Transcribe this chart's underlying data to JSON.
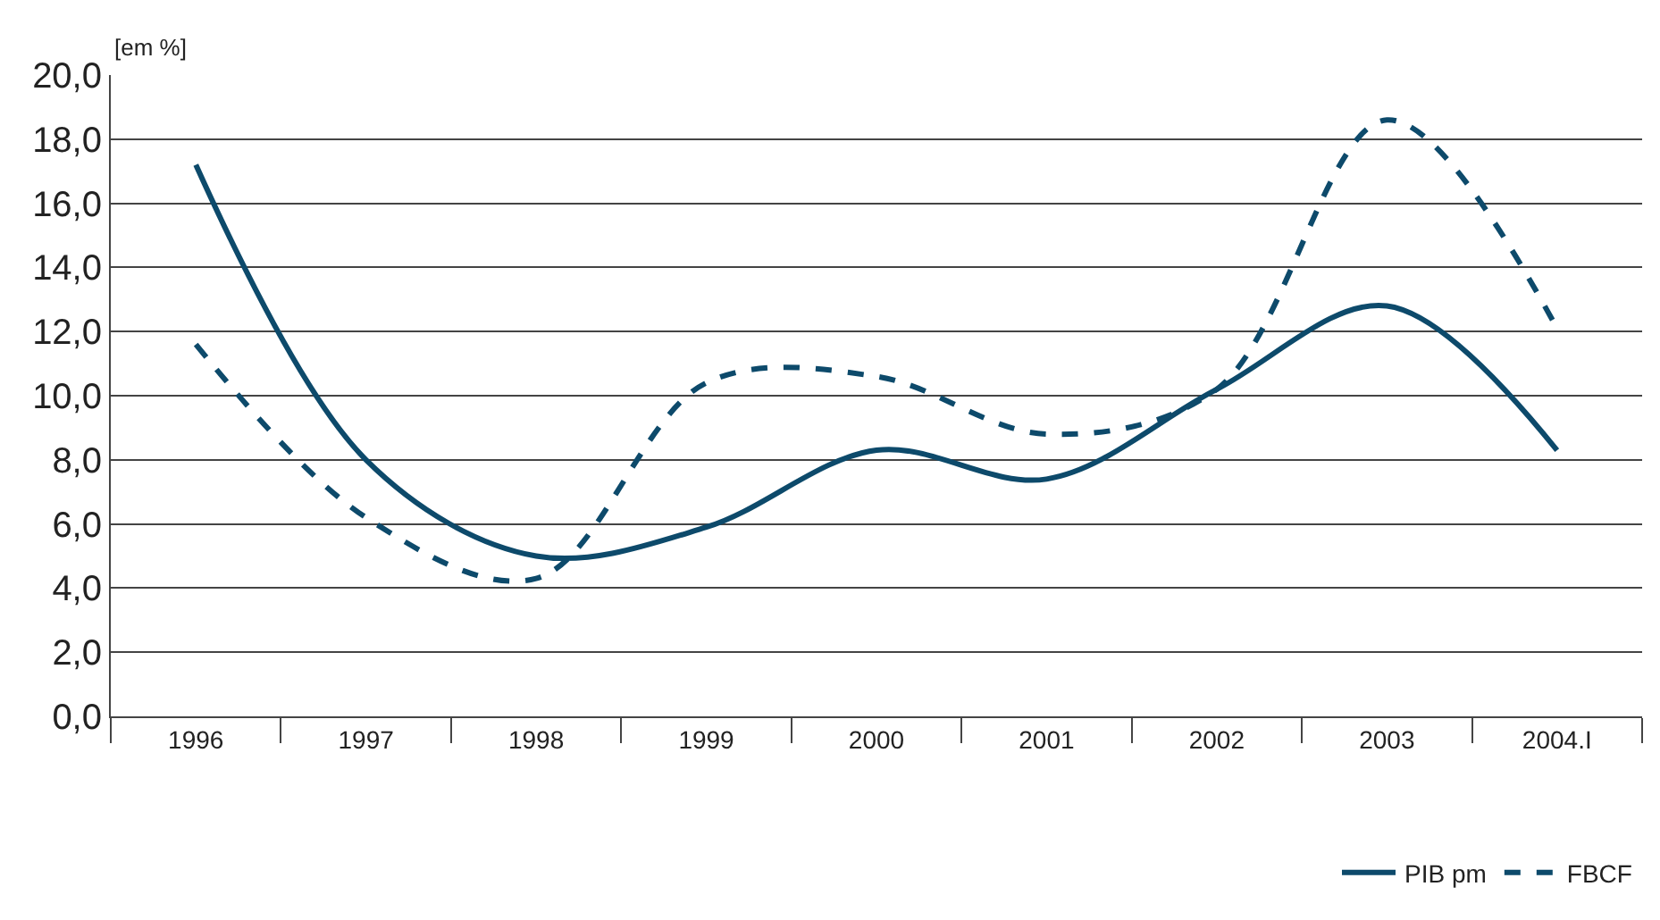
{
  "chart_data": {
    "type": "line",
    "ylabel": "[em %]",
    "categories": [
      "1996",
      "1997",
      "1998",
      "1999",
      "2000",
      "2001",
      "2002",
      "2003",
      "2004.I"
    ],
    "series": [
      {
        "name": "PIB pm",
        "color": "#0d4a6b",
        "line_style": "solid",
        "values": [
          17.2,
          8.0,
          5.0,
          5.9,
          8.3,
          7.4,
          10.2,
          12.8,
          8.3
        ]
      },
      {
        "name": "FBCF",
        "color": "#0d4a6b",
        "line_style": "dashed",
        "values": [
          11.6,
          6.2,
          4.3,
          10.4,
          10.6,
          8.8,
          10.2,
          18.6,
          12.1
        ]
      }
    ],
    "ylim": [
      0,
      20
    ],
    "yticks": [
      {
        "value": 0,
        "label": "0,0"
      },
      {
        "value": 2,
        "label": "2,0"
      },
      {
        "value": 4,
        "label": "4,0"
      },
      {
        "value": 6,
        "label": "6,0"
      },
      {
        "value": 8,
        "label": "8,0"
      },
      {
        "value": 10,
        "label": "10,0"
      },
      {
        "value": 12,
        "label": "12,0"
      },
      {
        "value": 14,
        "label": "14,0"
      },
      {
        "value": 16,
        "label": "16,0"
      },
      {
        "value": 18,
        "label": "18,0"
      },
      {
        "value": 20,
        "label": "20,0"
      }
    ],
    "grid": "y",
    "legend": "bottom right",
    "marker": "none"
  }
}
